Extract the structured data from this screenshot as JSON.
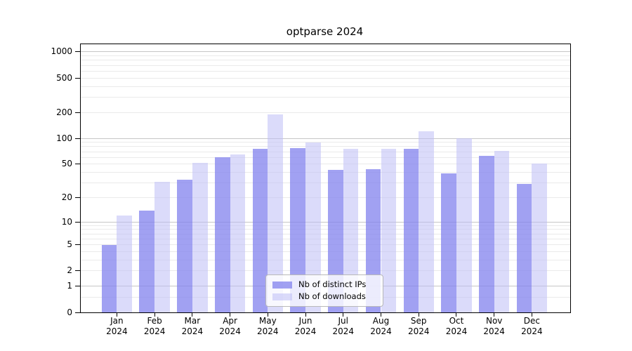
{
  "chart_data": {
    "type": "bar",
    "title": "optparse 2024",
    "categories": [
      "Jan\n2024",
      "Feb\n2024",
      "Mar\n2024",
      "Apr\n2024",
      "May\n2024",
      "Jun\n2024",
      "Jul\n2024",
      "Aug\n2024",
      "Sep\n2024",
      "Oct\n2024",
      "Nov\n2024",
      "Dec\n2024"
    ],
    "series": [
      {
        "name": "Nb of distinct IPs",
        "color": "#8282ee",
        "alpha": 0.75,
        "values": [
          5,
          14,
          33,
          60,
          75,
          77,
          43,
          44,
          75,
          39,
          63,
          29
        ]
      },
      {
        "name": "Nb of downloads",
        "color": "#bebef5",
        "alpha": 0.55,
        "values": [
          12,
          31,
          52,
          65,
          190,
          90,
          75,
          76,
          120,
          100,
          71,
          51
        ]
      }
    ],
    "xlabel": "",
    "ylabel": "",
    "yscale": "log1p",
    "y_ticks": [
      0,
      1,
      2,
      5,
      10,
      20,
      50,
      100,
      200,
      500,
      1000
    ],
    "y_tick_labels": [
      "0",
      "1",
      "2",
      "5",
      "10",
      "20",
      "50",
      "100",
      "200",
      "500",
      "1000"
    ],
    "ylim": [
      0,
      1225
    ],
    "grid": true,
    "legend_position": "lower center",
    "colors": {
      "grid_major": "#c6c6c6",
      "grid_minor": "#eaeaea",
      "axis": "#000000"
    }
  }
}
